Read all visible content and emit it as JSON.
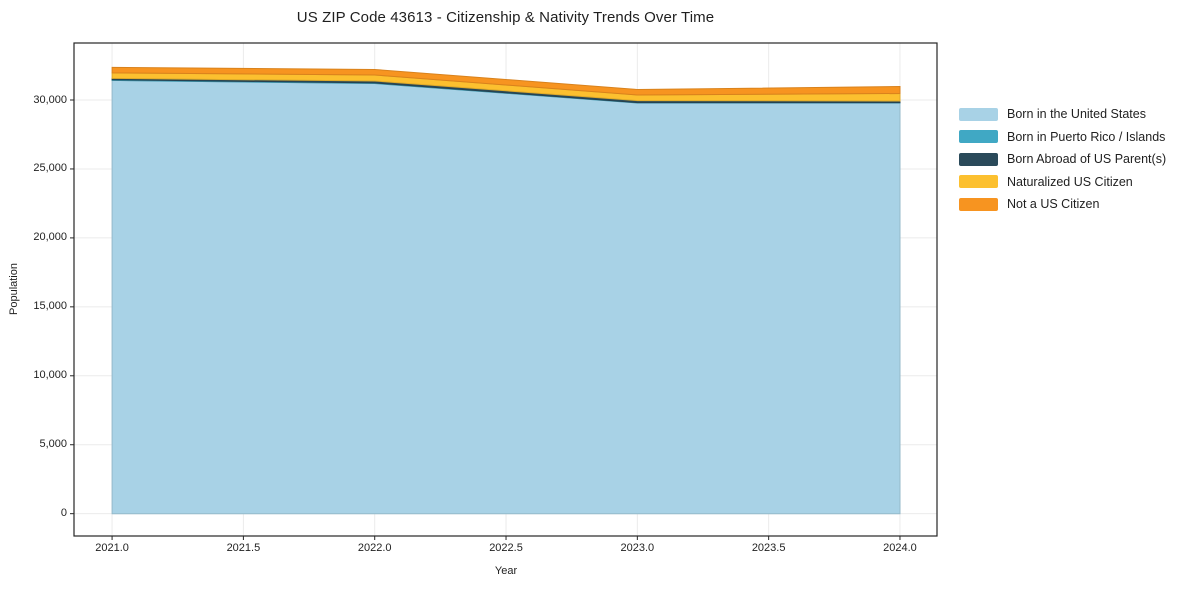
{
  "title": "US ZIP Code 43613 - Citizenship & Nativity Trends Over Time",
  "chart_data": {
    "type": "area",
    "stacked": true,
    "title": "US ZIP Code 43613 - Citizenship & Nativity Trends Over Time",
    "xlabel": "Year",
    "ylabel": "Population",
    "x": [
      2021,
      2022,
      2023,
      2024
    ],
    "series": [
      {
        "name": "Born in the United States",
        "color": "#a8d2e6",
        "values": [
          31420,
          31200,
          29780,
          29780
        ]
      },
      {
        "name": "Born in Puerto Rico / Islands",
        "color": "#40a8c4",
        "values": [
          50,
          40,
          30,
          30
        ]
      },
      {
        "name": "Born Abroad of US Parent(s)",
        "color": "#2a4a5a",
        "values": [
          95,
          140,
          150,
          115
        ]
      },
      {
        "name": "Naturalized US Citizen",
        "color": "#fcc02f",
        "values": [
          400,
          435,
          400,
          545
        ]
      },
      {
        "name": "Not a US Citizen",
        "color": "#f79420",
        "values": [
          400,
          400,
          400,
          510
        ]
      }
    ],
    "xlim": [
      2020.855,
      2024.141
    ],
    "ylim": [
      -1619,
      34134
    ],
    "xticks": [
      {
        "v": 2021.0,
        "label": "2021.0"
      },
      {
        "v": 2021.5,
        "label": "2021.5"
      },
      {
        "v": 2022.0,
        "label": "2022.0"
      },
      {
        "v": 2022.5,
        "label": "2022.5"
      },
      {
        "v": 2023.0,
        "label": "2023.0"
      },
      {
        "v": 2023.5,
        "label": "2023.5"
      },
      {
        "v": 2024.0,
        "label": "2024.0"
      }
    ],
    "yticks": [
      {
        "v": 0,
        "label": "0"
      },
      {
        "v": 5000,
        "label": "5,000"
      },
      {
        "v": 10000,
        "label": "10,000"
      },
      {
        "v": 15000,
        "label": "15,000"
      },
      {
        "v": 20000,
        "label": "20,000"
      },
      {
        "v": 25000,
        "label": "25,000"
      },
      {
        "v": 30000,
        "label": "30,000"
      }
    ],
    "grid": true,
    "grid_color": "#ebebeb",
    "spine_color": "#262626",
    "legend_position": "right-outside"
  }
}
